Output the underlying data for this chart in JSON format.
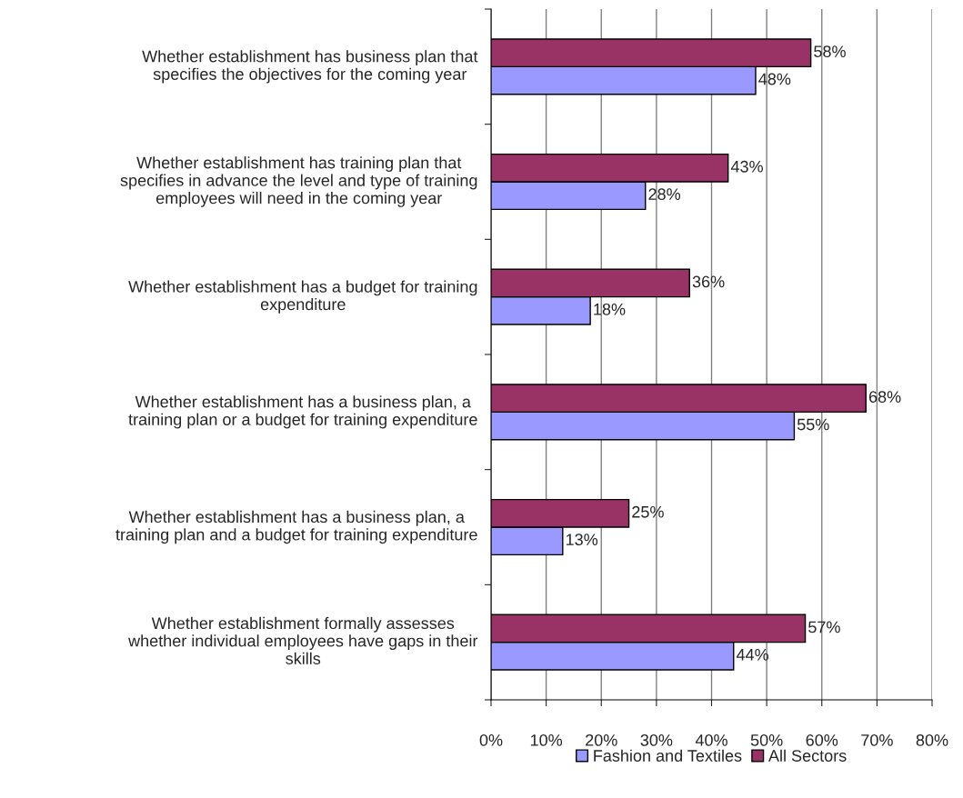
{
  "chart_data": {
    "type": "bar",
    "orientation": "horizontal",
    "categories": [
      "Whether establishment has business plan that\nspecifies the objectives for the coming year",
      "Whether establishment has training plan that\nspecifies in advance the level and type of training\nemployees will need in the coming year",
      "Whether establishment has a budget for training\nexpenditure",
      "Whether establishment has a business plan, a\ntraining plan or a budget for training expenditure",
      "Whether establishment has a business plan, a\ntraining plan and a budget for training expenditure",
      "Whether establishment formally assesses\nwhether individual employees have gaps in their\nskills"
    ],
    "series": [
      {
        "name": "Fashion and Textiles",
        "color": "#9999ff",
        "values": [
          48,
          28,
          18,
          55,
          13,
          44
        ],
        "value_labels": [
          "48%",
          "28%",
          "18%",
          "55%",
          "13%",
          "44%"
        ]
      },
      {
        "name": "All Sectors",
        "color": "#993366",
        "values": [
          58,
          43,
          36,
          68,
          25,
          57
        ],
        "value_labels": [
          "58%",
          "43%",
          "36%",
          "68%",
          "25%",
          "57%"
        ]
      }
    ],
    "xlim": [
      0,
      80
    ],
    "xticks": [
      {
        "value": 0,
        "label": "0%"
      },
      {
        "value": 10,
        "label": "10%"
      },
      {
        "value": 20,
        "label": "20%"
      },
      {
        "value": 30,
        "label": "30%"
      },
      {
        "value": 40,
        "label": "40%"
      },
      {
        "value": 50,
        "label": "50%"
      },
      {
        "value": 60,
        "label": "60%"
      },
      {
        "value": 70,
        "label": "70%"
      },
      {
        "value": 80,
        "label": "80%"
      }
    ],
    "grid": "x",
    "legend": "bottom"
  }
}
